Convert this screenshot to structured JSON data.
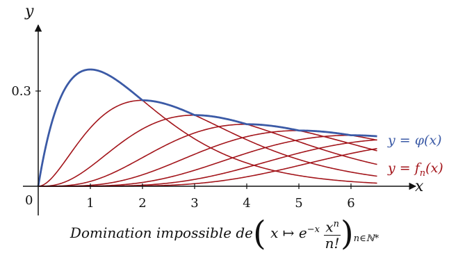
{
  "chart_data": {
    "type": "line",
    "xlabel": "x",
    "ylabel": "y",
    "x_ticks": [
      "1",
      "2",
      "3",
      "4",
      "5",
      "6"
    ],
    "y_ticks": [
      "0.3"
    ],
    "origin_label": "0",
    "xlim": [
      -0.5,
      7.2
    ],
    "ylim": [
      -0.1,
      0.5
    ],
    "n_max": 8,
    "series": [
      {
        "name": "y = φ(x)",
        "name_prefix": "y = ",
        "name_func": "φ(x)",
        "color": "#3b5aa6"
      },
      {
        "name": "y = fn(x)",
        "name_prefix": "y = ",
        "name_func": "f",
        "name_sub": "n",
        "name_arg": "(x)",
        "color": "#a3151b"
      }
    ]
  },
  "caption": {
    "lead": "Domination impossible de",
    "open_paren": "(",
    "map": "x ↦ e",
    "exp": "−x",
    "num": "x",
    "num_exp": "n",
    "den": "n!",
    "close_paren": ")",
    "sub": "n∈ℕ*"
  }
}
